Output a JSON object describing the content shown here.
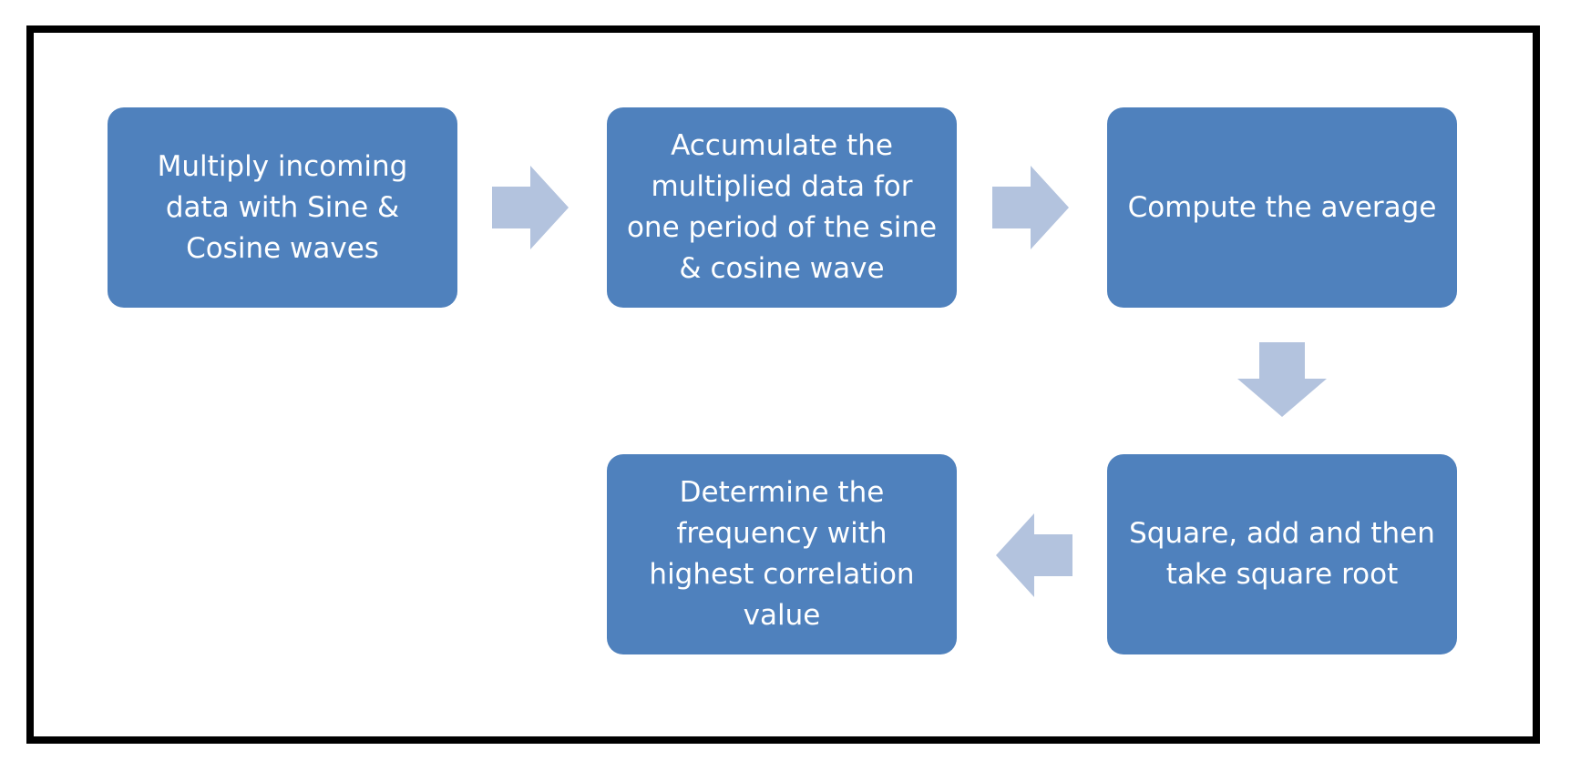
{
  "colors": {
    "box_fill": "#4f81bd",
    "box_text": "#ffffff",
    "arrow_fill": "#b3c3de",
    "frame_border": "#000000"
  },
  "steps": [
    {
      "text": "Multiply incoming data with Sine & Cosine waves"
    },
    {
      "text": "Accumulate the multiplied data for one period of the sine & cosine wave"
    },
    {
      "text": "Compute the average"
    },
    {
      "text": "Square, add and then take square root"
    },
    {
      "text": "Determine the frequency with highest correlation value"
    }
  ],
  "arrows": [
    {
      "from": 1,
      "to": 2,
      "direction": "right"
    },
    {
      "from": 2,
      "to": 3,
      "direction": "right"
    },
    {
      "from": 3,
      "to": 4,
      "direction": "down"
    },
    {
      "from": 4,
      "to": 5,
      "direction": "left"
    }
  ]
}
